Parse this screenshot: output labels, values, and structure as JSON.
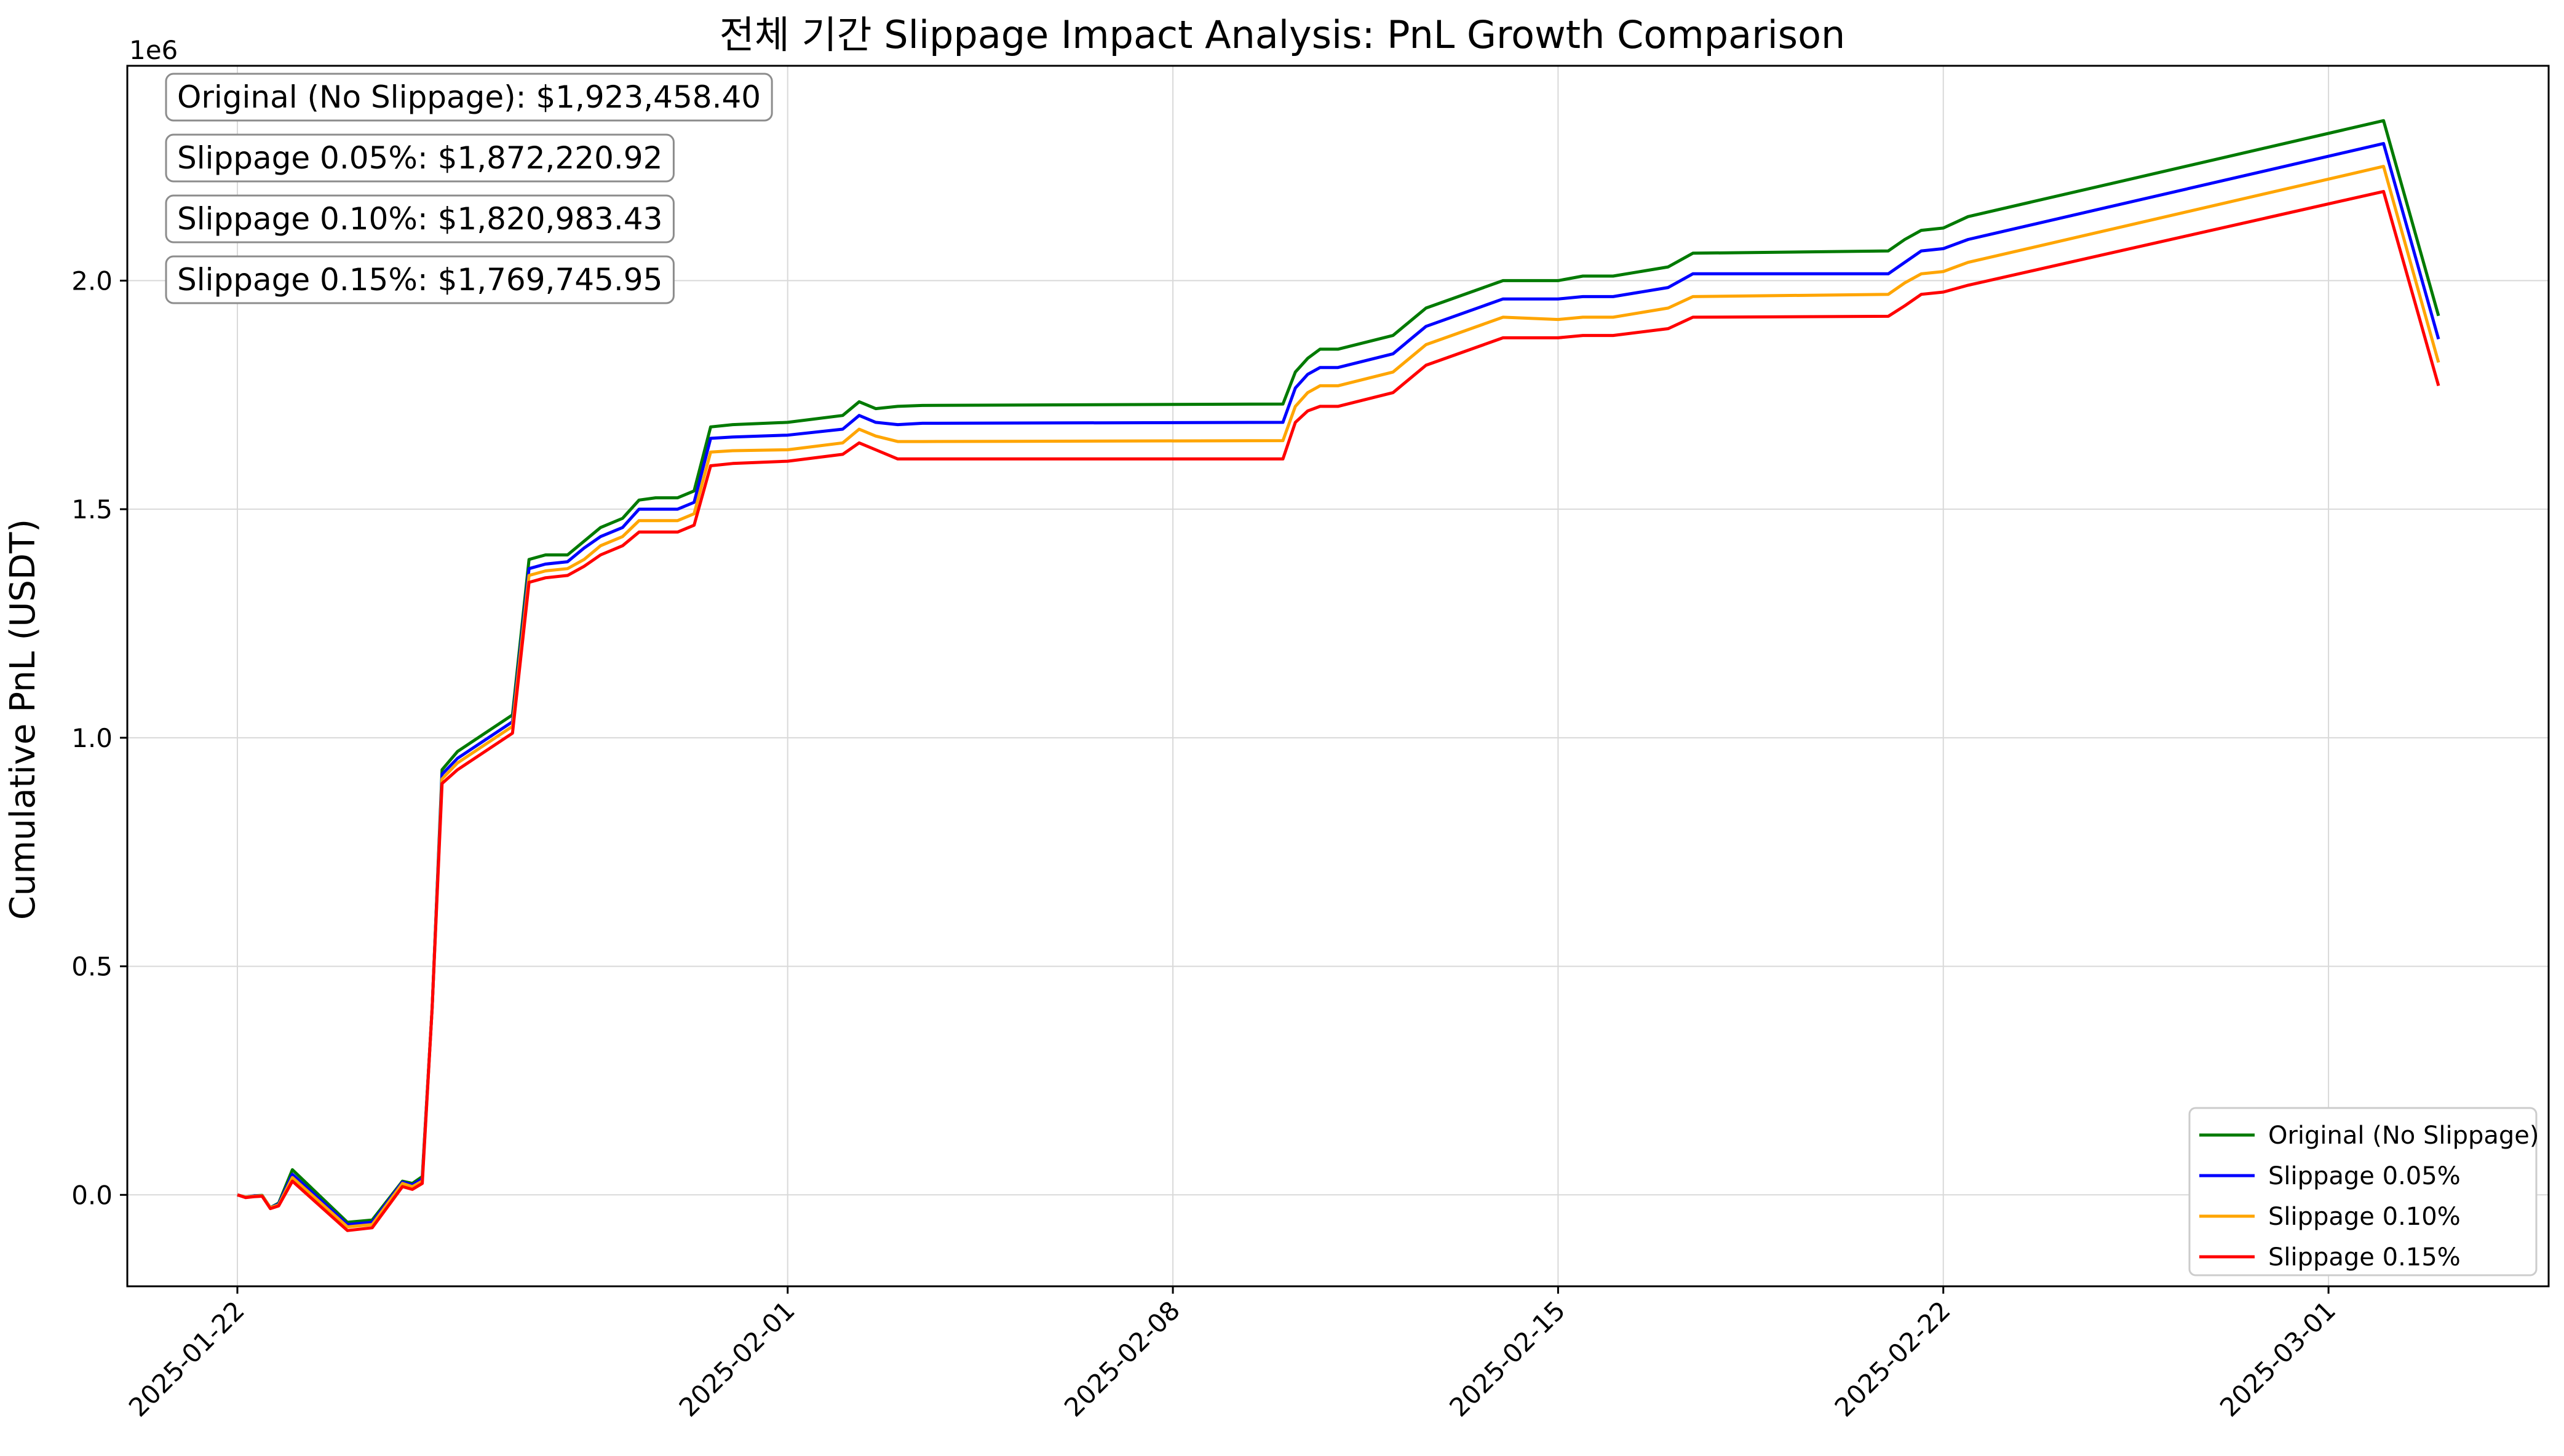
{
  "chart_data": {
    "type": "line",
    "title": "전체 기간 Slippage Impact Analysis: PnL Growth Comparison",
    "xlabel": "",
    "ylabel": "Cumulative PnL (USDT)",
    "y_offset_label": "1e6",
    "x_range": [
      "2025-01-20",
      "2025-03-05"
    ],
    "y_range": [
      -0.2,
      2.47
    ],
    "x_ticks": [
      "2025-01-22",
      "2025-02-01",
      "2025-02-08",
      "2025-02-15",
      "2025-02-22",
      "2025-03-01"
    ],
    "y_ticks": [
      "0.0",
      "0.5",
      "1.0",
      "1.5",
      "2.0"
    ],
    "grid": true,
    "legend_position": "lower-right",
    "colors": {
      "Original (No Slippage)": "#007a00",
      "Slippage 0.05%": "#0000ff",
      "Slippage 0.10%": "#ffa500",
      "Slippage 0.15%": "#ff0000"
    },
    "summary_boxes": [
      "Original (No Slippage): $1,923,458.40",
      "Slippage 0.05%: $1,872,220.92",
      "Slippage 0.10%: $1,820,983.43",
      "Slippage 0.15%: $1,769,745.95"
    ],
    "x": [
      "2025-01-22",
      "2025-01-22",
      "2025-01-22",
      "2025-01-22",
      "2025-01-22",
      "2025-01-22",
      "2025-01-23",
      "2025-01-24",
      "2025-01-24",
      "2025-01-25",
      "2025-01-25",
      "2025-01-25",
      "2025-01-25",
      "2025-01-25",
      "2025-01-26",
      "2025-01-27",
      "2025-01-27",
      "2025-01-27",
      "2025-01-28",
      "2025-01-28",
      "2025-01-28",
      "2025-01-29",
      "2025-01-29",
      "2025-01-29",
      "2025-01-30",
      "2025-01-30",
      "2025-01-30",
      "2025-01-31",
      "2025-02-01",
      "2025-02-02",
      "2025-02-02",
      "2025-02-02",
      "2025-02-03",
      "2025-02-03",
      "2025-02-10",
      "2025-02-10",
      "2025-02-10",
      "2025-02-10",
      "2025-02-11",
      "2025-02-12",
      "2025-02-12",
      "2025-02-12",
      "2025-02-14",
      "2025-02-15",
      "2025-02-15",
      "2025-02-16",
      "2025-02-17",
      "2025-02-17",
      "2025-02-21",
      "2025-02-21",
      "2025-02-21",
      "2025-02-22",
      "2025-02-22",
      "2025-03-02",
      "2025-03-03"
    ],
    "series": [
      {
        "name": "Original (No Slippage)",
        "values": [
          0.0,
          -0.005,
          -0.002,
          -0.001,
          -0.028,
          -0.018,
          0.055,
          -0.06,
          -0.055,
          0.03,
          0.025,
          0.04,
          0.41,
          0.93,
          0.97,
          1.05,
          1.39,
          1.4,
          1.4,
          1.43,
          1.46,
          1.48,
          1.52,
          1.525,
          1.525,
          1.54,
          1.68,
          1.685,
          1.69,
          1.705,
          1.735,
          1.72,
          1.725,
          1.727,
          1.73,
          1.8,
          1.83,
          1.85,
          1.85,
          1.88,
          1.91,
          1.94,
          2.0,
          2.0,
          2.01,
          2.01,
          2.03,
          2.06,
          2.065,
          2.09,
          2.11,
          2.115,
          2.14,
          2.35,
          1.923
        ]
      },
      {
        "name": "Slippage 0.05%",
        "values": [
          0.0,
          -0.005,
          -0.002,
          -0.002,
          -0.028,
          -0.02,
          0.045,
          -0.065,
          -0.06,
          0.028,
          0.022,
          0.035,
          0.41,
          0.92,
          0.955,
          1.035,
          1.37,
          1.38,
          1.385,
          1.415,
          1.44,
          1.46,
          1.5,
          1.5,
          1.5,
          1.515,
          1.655,
          1.658,
          1.662,
          1.675,
          1.705,
          1.69,
          1.685,
          1.688,
          1.69,
          1.765,
          1.795,
          1.81,
          1.81,
          1.84,
          1.87,
          1.9,
          1.96,
          1.96,
          1.965,
          1.965,
          1.985,
          2.015,
          2.015,
          2.04,
          2.065,
          2.07,
          2.09,
          2.3,
          1.872
        ]
      },
      {
        "name": "Slippage 0.10%",
        "values": [
          0.0,
          -0.005,
          -0.003,
          -0.002,
          -0.028,
          -0.022,
          0.038,
          -0.07,
          -0.065,
          0.025,
          0.018,
          0.03,
          0.41,
          0.91,
          0.945,
          1.025,
          1.355,
          1.365,
          1.37,
          1.39,
          1.42,
          1.44,
          1.475,
          1.475,
          1.475,
          1.49,
          1.625,
          1.628,
          1.63,
          1.645,
          1.675,
          1.66,
          1.648,
          1.648,
          1.65,
          1.725,
          1.755,
          1.77,
          1.77,
          1.8,
          1.83,
          1.86,
          1.92,
          1.915,
          1.92,
          1.92,
          1.94,
          1.965,
          1.97,
          1.995,
          2.015,
          2.02,
          2.04,
          2.25,
          1.821
        ]
      },
      {
        "name": "Slippage 0.15%",
        "values": [
          0.0,
          -0.006,
          -0.004,
          -0.003,
          -0.03,
          -0.024,
          0.03,
          -0.078,
          -0.072,
          0.018,
          0.012,
          0.025,
          0.41,
          0.9,
          0.93,
          1.01,
          1.34,
          1.35,
          1.355,
          1.375,
          1.4,
          1.42,
          1.45,
          1.45,
          1.45,
          1.465,
          1.595,
          1.6,
          1.605,
          1.62,
          1.645,
          1.63,
          1.61,
          1.61,
          1.61,
          1.69,
          1.715,
          1.725,
          1.725,
          1.755,
          1.785,
          1.815,
          1.875,
          1.875,
          1.88,
          1.88,
          1.895,
          1.92,
          1.922,
          1.945,
          1.97,
          1.975,
          1.99,
          2.195,
          1.77
        ]
      }
    ]
  }
}
